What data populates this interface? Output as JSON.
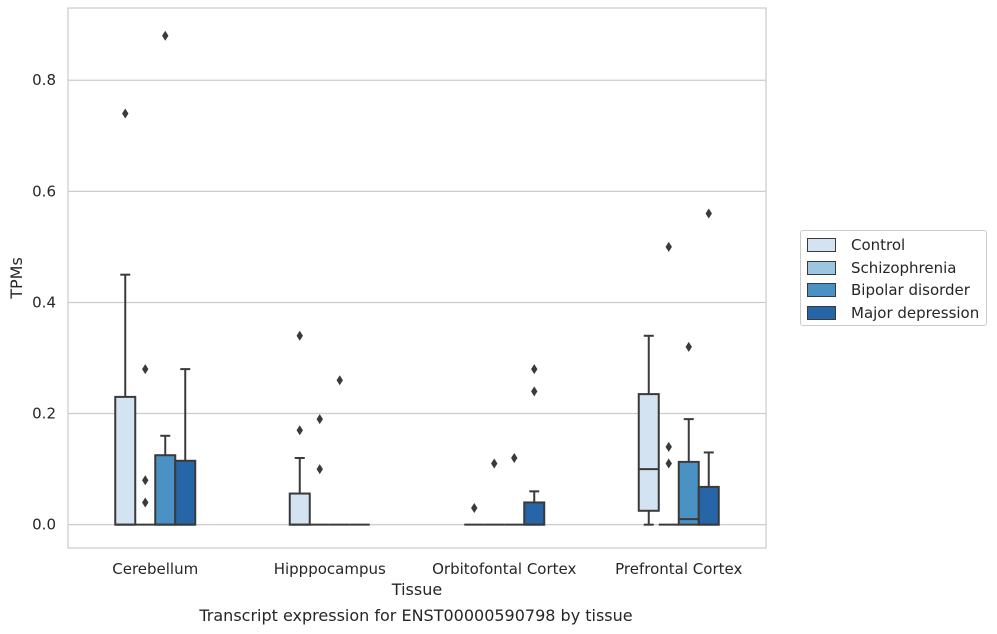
{
  "caption": "Transcript expression for ENST00000590798 by tissue",
  "colors": {
    "grid": "#cccccc",
    "axes_frame": "#cccccc",
    "box_edge": "#3a3a3a",
    "series": [
      "#d4e3f2",
      "#9cc5df",
      "#4a91c4",
      "#2565a8"
    ]
  },
  "chart_data": {
    "type": "box",
    "title": "",
    "xlabel": "Tissue",
    "ylabel": "TPMs",
    "ylim": [
      -0.042,
      0.93
    ],
    "yticks": [
      0.0,
      0.2,
      0.4,
      0.6,
      0.8
    ],
    "ytick_labels": [
      "0.0",
      "0.2",
      "0.4",
      "0.6",
      "0.8"
    ],
    "grid": true,
    "legend_position": "right",
    "categories": [
      "Cerebellum",
      "Hipppocampus",
      "Orbitofontal Cortex",
      "Prefrontal Cortex"
    ],
    "series": [
      {
        "name": "Control",
        "boxes": [
          {
            "q1": 0.0,
            "median": 0.0,
            "q3": 0.23,
            "whislo": 0.0,
            "whishi": 0.45,
            "fliers": [
              0.74
            ]
          },
          {
            "q1": 0.0,
            "median": 0.0,
            "q3": 0.056,
            "whislo": 0.0,
            "whishi": 0.12,
            "fliers": [
              0.17,
              0.34
            ]
          },
          {
            "q1": 0.0,
            "median": 0.0,
            "q3": 0.0,
            "whislo": 0.0,
            "whishi": 0.0,
            "fliers": [
              0.03
            ]
          },
          {
            "q1": 0.025,
            "median": 0.1,
            "q3": 0.235,
            "whislo": 0.0,
            "whishi": 0.34,
            "fliers": []
          }
        ]
      },
      {
        "name": "Schizophrenia",
        "boxes": [
          {
            "q1": 0.0,
            "median": 0.0,
            "q3": 0.0,
            "whislo": 0.0,
            "whishi": 0.0,
            "fliers": [
              0.04,
              0.08,
              0.28
            ]
          },
          {
            "q1": 0.0,
            "median": 0.0,
            "q3": 0.0,
            "whislo": 0.0,
            "whishi": 0.0,
            "fliers": [
              0.1,
              0.19
            ]
          },
          {
            "q1": 0.0,
            "median": 0.0,
            "q3": 0.0,
            "whislo": 0.0,
            "whishi": 0.0,
            "fliers": [
              0.11
            ]
          },
          {
            "q1": 0.0,
            "median": 0.0,
            "q3": 0.0,
            "whislo": 0.0,
            "whishi": 0.0,
            "fliers": [
              0.11,
              0.14,
              0.5
            ]
          }
        ]
      },
      {
        "name": "Bipolar disorder",
        "boxes": [
          {
            "q1": 0.0,
            "median": 0.0,
            "q3": 0.125,
            "whislo": 0.0,
            "whishi": 0.16,
            "fliers": [
              0.88
            ]
          },
          {
            "q1": 0.0,
            "median": 0.0,
            "q3": 0.0,
            "whislo": 0.0,
            "whishi": 0.0,
            "fliers": [
              0.26
            ]
          },
          {
            "q1": 0.0,
            "median": 0.0,
            "q3": 0.0,
            "whislo": 0.0,
            "whishi": 0.0,
            "fliers": [
              0.12
            ]
          },
          {
            "q1": 0.0,
            "median": 0.01,
            "q3": 0.113,
            "whislo": 0.0,
            "whishi": 0.19,
            "fliers": [
              0.32
            ]
          }
        ]
      },
      {
        "name": "Major depression",
        "boxes": [
          {
            "q1": 0.0,
            "median": 0.0,
            "q3": 0.115,
            "whislo": 0.0,
            "whishi": 0.28,
            "fliers": []
          },
          {
            "q1": 0.0,
            "median": 0.0,
            "q3": 0.0,
            "whislo": 0.0,
            "whishi": 0.0,
            "fliers": []
          },
          {
            "q1": 0.0,
            "median": 0.0,
            "q3": 0.04,
            "whislo": 0.0,
            "whishi": 0.06,
            "fliers": [
              0.24,
              0.28
            ]
          },
          {
            "q1": 0.0,
            "median": 0.0,
            "q3": 0.068,
            "whislo": 0.0,
            "whishi": 0.13,
            "fliers": [
              0.56
            ]
          }
        ]
      }
    ]
  }
}
